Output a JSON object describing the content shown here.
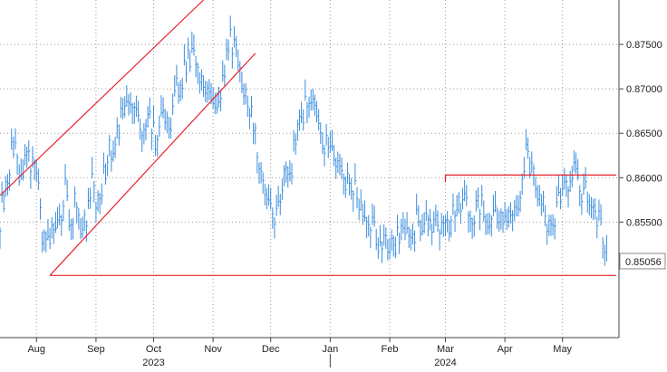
{
  "chart_data": {
    "type": "line",
    "subtype": "ohlc",
    "grid": true,
    "ylim": [
      0.842,
      0.88
    ],
    "y_ticks": [
      "0.87500",
      "0.87000",
      "0.86500",
      "0.86000",
      "0.85500"
    ],
    "last_value_label": "0.85056",
    "x_month_labels": [
      {
        "label": "Aug",
        "date": "2023-08-01"
      },
      {
        "label": "Sep",
        "date": "2023-09-01"
      },
      {
        "label": "Oct",
        "date": "2023-10-01"
      },
      {
        "label": "Nov",
        "date": "2023-11-01"
      },
      {
        "label": "Dec",
        "date": "2023-12-01"
      },
      {
        "label": "Jan",
        "date": "2024-01-01"
      },
      {
        "label": "Feb",
        "date": "2024-02-01"
      },
      {
        "label": "Mar",
        "date": "2024-03-01"
      },
      {
        "label": "Apr",
        "date": "2024-04-01"
      },
      {
        "label": "May",
        "date": "2024-05-01"
      }
    ],
    "x_year_labels": [
      {
        "label": "2023",
        "date": "2023-10-01"
      },
      {
        "label": "2024",
        "date": "2024-03-01"
      }
    ],
    "series": [
      {
        "points": [
          [
            "2023-07-13",
            0.8555
          ],
          [
            "2023-07-17",
            0.8605
          ],
          [
            "2023-07-20",
            0.864
          ],
          [
            "2023-07-24",
            0.86
          ],
          [
            "2023-07-27",
            0.8625
          ],
          [
            "2023-07-31",
            0.861
          ],
          [
            "2023-08-02",
            0.858
          ],
          [
            "2023-08-04",
            0.854
          ],
          [
            "2023-08-08",
            0.852
          ],
          [
            "2023-08-10",
            0.8548
          ],
          [
            "2023-08-14",
            0.856
          ],
          [
            "2023-08-16",
            0.859
          ],
          [
            "2023-08-18",
            0.8558
          ],
          [
            "2023-08-22",
            0.8572
          ],
          [
            "2023-08-24",
            0.8538
          ],
          [
            "2023-08-28",
            0.8562
          ],
          [
            "2023-08-30",
            0.859
          ],
          [
            "2023-09-01",
            0.8575
          ],
          [
            "2023-09-05",
            0.86
          ],
          [
            "2023-09-07",
            0.8625
          ],
          [
            "2023-09-11",
            0.8645
          ],
          [
            "2023-09-13",
            0.866
          ],
          [
            "2023-09-15",
            0.868
          ],
          [
            "2023-09-19",
            0.869
          ],
          [
            "2023-09-21",
            0.868
          ],
          [
            "2023-09-25",
            0.866
          ],
          [
            "2023-09-27",
            0.8655
          ],
          [
            "2023-09-29",
            0.8665
          ],
          [
            "2023-10-03",
            0.864
          ],
          [
            "2023-10-05",
            0.8665
          ],
          [
            "2023-10-09",
            0.865
          ],
          [
            "2023-10-11",
            0.868
          ],
          [
            "2023-10-13",
            0.87
          ],
          [
            "2023-10-17",
            0.872
          ],
          [
            "2023-10-19",
            0.874
          ],
          [
            "2023-10-23",
            0.8725
          ],
          [
            "2023-10-25",
            0.8705
          ],
          [
            "2023-10-27",
            0.8715
          ],
          [
            "2023-10-31",
            0.869
          ],
          [
            "2023-11-02",
            0.868
          ],
          [
            "2023-11-06",
            0.871
          ],
          [
            "2023-11-08",
            0.874
          ],
          [
            "2023-11-10",
            0.8755
          ],
          [
            "2023-11-14",
            0.8735
          ],
          [
            "2023-11-16",
            0.87
          ],
          [
            "2023-11-20",
            0.8685
          ],
          [
            "2023-11-22",
            0.866
          ],
          [
            "2023-11-24",
            0.863
          ],
          [
            "2023-11-28",
            0.859
          ],
          [
            "2023-11-30",
            0.8565
          ],
          [
            "2023-12-04",
            0.856
          ],
          [
            "2023-12-06",
            0.8575
          ],
          [
            "2023-12-08",
            0.86
          ],
          [
            "2023-12-12",
            0.8615
          ],
          [
            "2023-12-14",
            0.865
          ],
          [
            "2023-12-18",
            0.8675
          ],
          [
            "2023-12-20",
            0.869
          ],
          [
            "2023-12-22",
            0.868
          ],
          [
            "2023-12-27",
            0.865
          ],
          [
            "2023-12-29",
            0.864
          ],
          [
            "2024-01-02",
            0.862
          ],
          [
            "2024-01-04",
            0.861
          ],
          [
            "2024-01-08",
            0.86
          ],
          [
            "2024-01-10",
            0.859
          ],
          [
            "2024-01-12",
            0.859
          ],
          [
            "2024-01-16",
            0.8575
          ],
          [
            "2024-01-18",
            0.8562
          ],
          [
            "2024-01-22",
            0.855
          ],
          [
            "2024-01-24",
            0.854
          ],
          [
            "2024-01-26",
            0.8525
          ],
          [
            "2024-01-30",
            0.852
          ],
          [
            "2024-02-01",
            0.8525
          ],
          [
            "2024-02-05",
            0.853
          ],
          [
            "2024-02-07",
            0.8545
          ],
          [
            "2024-02-09",
            0.854
          ],
          [
            "2024-02-13",
            0.853
          ],
          [
            "2024-02-15",
            0.855
          ],
          [
            "2024-02-19",
            0.8545
          ],
          [
            "2024-02-21",
            0.8555
          ],
          [
            "2024-02-23",
            0.855
          ],
          [
            "2024-02-27",
            0.854
          ],
          [
            "2024-02-29",
            0.8535
          ],
          [
            "2024-03-04",
            0.855
          ],
          [
            "2024-03-06",
            0.8565
          ],
          [
            "2024-03-08",
            0.858
          ],
          [
            "2024-03-12",
            0.857
          ],
          [
            "2024-03-14",
            0.8555
          ],
          [
            "2024-03-18",
            0.8565
          ],
          [
            "2024-03-20",
            0.857
          ],
          [
            "2024-03-22",
            0.856
          ],
          [
            "2024-03-26",
            0.855
          ],
          [
            "2024-03-28",
            0.856
          ],
          [
            "2024-04-02",
            0.8555
          ],
          [
            "2024-04-04",
            0.856
          ],
          [
            "2024-04-08",
            0.8575
          ],
          [
            "2024-04-10",
            0.8605
          ],
          [
            "2024-04-12",
            0.8625
          ],
          [
            "2024-04-16",
            0.86
          ],
          [
            "2024-04-18",
            0.858
          ],
          [
            "2024-04-22",
            0.856
          ],
          [
            "2024-04-24",
            0.8545
          ],
          [
            "2024-04-26",
            0.855
          ],
          [
            "2024-04-30",
            0.8575
          ],
          [
            "2024-05-02",
            0.8595
          ],
          [
            "2024-05-06",
            0.8605
          ],
          [
            "2024-05-08",
            0.86
          ],
          [
            "2024-05-10",
            0.859
          ],
          [
            "2024-05-14",
            0.858
          ],
          [
            "2024-05-16",
            0.857
          ],
          [
            "2024-05-20",
            0.8555
          ],
          [
            "2024-05-22",
            0.8535
          ],
          [
            "2024-05-24",
            0.85056
          ]
        ]
      }
    ],
    "trend_lines": [
      {
        "from": [
          "2023-07-13",
          0.858
        ],
        "to": [
          "2023-10-27",
          0.88
        ]
      },
      {
        "from": [
          "2023-08-08",
          0.849
        ],
        "to": [
          "2023-11-23",
          0.874
        ]
      }
    ],
    "horizontal_lines": [
      {
        "y": 0.8603,
        "from": "2024-03-01",
        "to": "2024-05-29"
      },
      {
        "y": 0.849,
        "from": "2023-08-08",
        "to": "2024-05-29"
      }
    ],
    "colors": {
      "series": "#3a8dde",
      "lines": "#e8202a",
      "grid": "#9a9a9a",
      "axis": "#444444"
    }
  }
}
